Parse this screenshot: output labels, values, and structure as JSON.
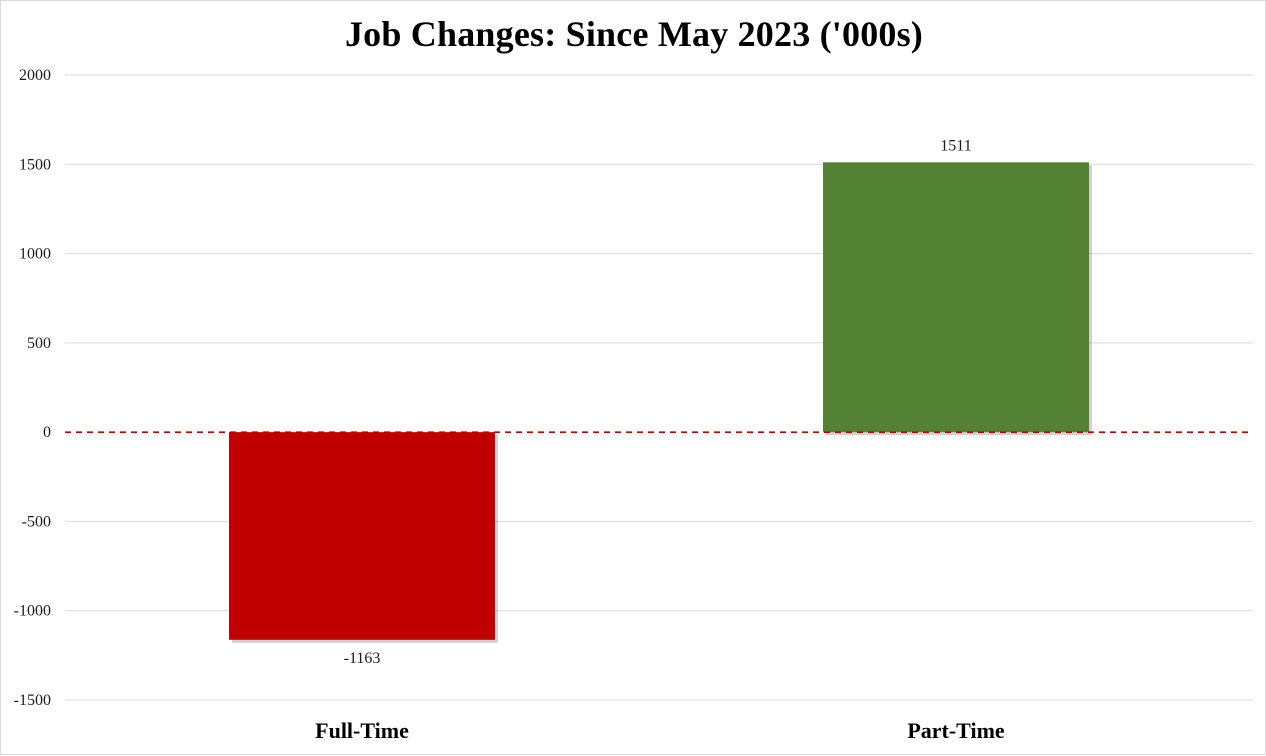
{
  "chart_data": {
    "type": "bar",
    "title": "Job Changes: Since May 2023 ('000s)",
    "xlabel": "",
    "ylabel": "",
    "categories": [
      "Full-Time",
      "Part-Time"
    ],
    "values": [
      -1163,
      1511
    ],
    "data_labels": [
      "-1163",
      "1511"
    ],
    "bar_colors": [
      "#c00000",
      "#548235"
    ],
    "ylim": [
      -1500,
      2000
    ],
    "y_ticks": [
      -1500,
      -1000,
      -500,
      0,
      500,
      1000,
      1500,
      2000
    ],
    "y_tick_labels": [
      "-1500",
      "-1000",
      "-500",
      "0",
      "500",
      "1000",
      "1500",
      "2000"
    ],
    "grid": true,
    "zero_line": {
      "style": "dashed",
      "color": "#c00000"
    },
    "legend": "none"
  }
}
